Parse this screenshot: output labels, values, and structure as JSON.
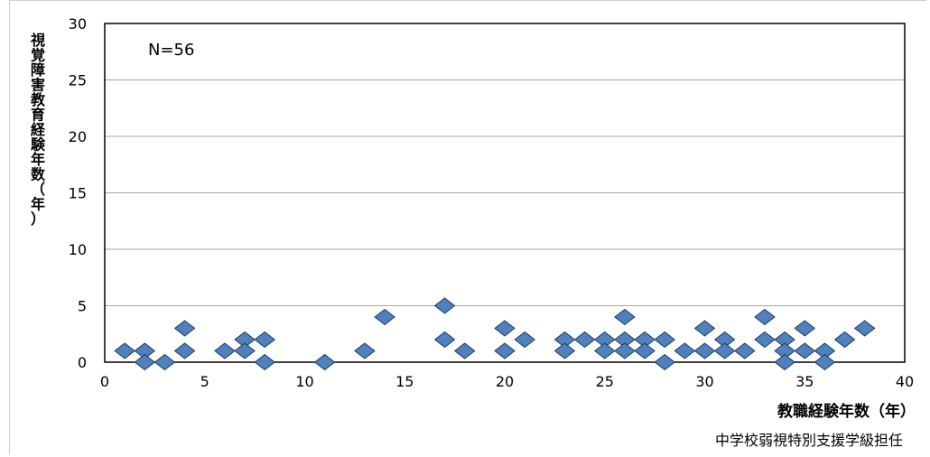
{
  "chart_data": {
    "type": "scatter",
    "annotation": "N=56",
    "xlabel": "教職経験年数（年）",
    "ylabel": "視覚障害教育経験年数（年）",
    "subtitle": "中学校弱視特別支援学級担任",
    "xlim": [
      0,
      40
    ],
    "ylim": [
      0,
      30
    ],
    "xticks": [
      0,
      5,
      10,
      15,
      20,
      25,
      30,
      35,
      40
    ],
    "yticks": [
      0,
      5,
      10,
      15,
      20,
      25,
      30
    ],
    "grid": "horizontal",
    "marker_color": "#4f81bd",
    "marker_edge": "#1f3b66",
    "points": [
      {
        "x": 1,
        "y": 1
      },
      {
        "x": 2,
        "y": 1
      },
      {
        "x": 2,
        "y": 0
      },
      {
        "x": 3,
        "y": 0
      },
      {
        "x": 4,
        "y": 3
      },
      {
        "x": 4,
        "y": 1
      },
      {
        "x": 6,
        "y": 1
      },
      {
        "x": 7,
        "y": 2
      },
      {
        "x": 7,
        "y": 1
      },
      {
        "x": 8,
        "y": 2
      },
      {
        "x": 8,
        "y": 0
      },
      {
        "x": 11,
        "y": 0
      },
      {
        "x": 13,
        "y": 1
      },
      {
        "x": 14,
        "y": 4
      },
      {
        "x": 17,
        "y": 5
      },
      {
        "x": 17,
        "y": 2
      },
      {
        "x": 18,
        "y": 1
      },
      {
        "x": 20,
        "y": 3
      },
      {
        "x": 20,
        "y": 1
      },
      {
        "x": 21,
        "y": 2
      },
      {
        "x": 23,
        "y": 2
      },
      {
        "x": 23,
        "y": 1
      },
      {
        "x": 24,
        "y": 2
      },
      {
        "x": 25,
        "y": 2
      },
      {
        "x": 25,
        "y": 1
      },
      {
        "x": 26,
        "y": 4
      },
      {
        "x": 26,
        "y": 2
      },
      {
        "x": 26,
        "y": 1
      },
      {
        "x": 27,
        "y": 2
      },
      {
        "x": 27,
        "y": 1
      },
      {
        "x": 28,
        "y": 2
      },
      {
        "x": 28,
        "y": 0
      },
      {
        "x": 29,
        "y": 1
      },
      {
        "x": 30,
        "y": 3
      },
      {
        "x": 30,
        "y": 1
      },
      {
        "x": 31,
        "y": 2
      },
      {
        "x": 31,
        "y": 1
      },
      {
        "x": 32,
        "y": 1
      },
      {
        "x": 33,
        "y": 4
      },
      {
        "x": 33,
        "y": 2
      },
      {
        "x": 34,
        "y": 2
      },
      {
        "x": 34,
        "y": 1
      },
      {
        "x": 34,
        "y": 0
      },
      {
        "x": 35,
        "y": 3
      },
      {
        "x": 35,
        "y": 1
      },
      {
        "x": 36,
        "y": 1
      },
      {
        "x": 36,
        "y": 0
      },
      {
        "x": 37,
        "y": 2
      },
      {
        "x": 38,
        "y": 3
      }
    ]
  }
}
